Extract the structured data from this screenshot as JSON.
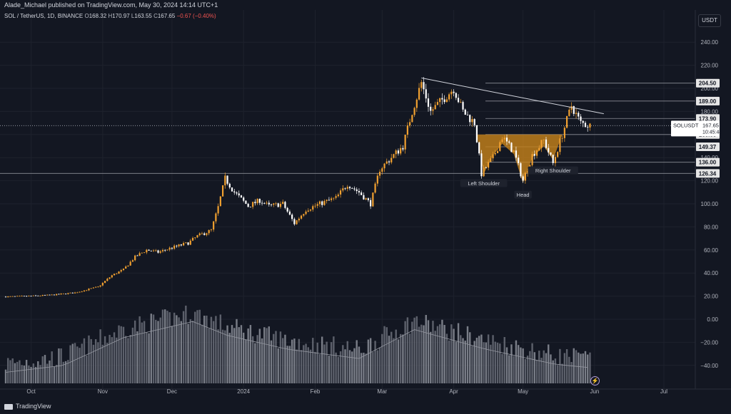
{
  "header": {
    "publish_line": "Alade_Michael published on TradingView.com, May 30, 2024 14:14 UTC+1",
    "symbol": "SOL / TetherUS, 1D, BINANCE",
    "o_label": "O",
    "o": "168.32",
    "h_label": "H",
    "h": "170.97",
    "l_label": "L",
    "l": "163.55",
    "c_label": "C",
    "c": "167.65",
    "change": "−0.67 (−0.40%)",
    "currency": "USDT"
  },
  "footer": {
    "brand": "TradingView"
  },
  "colors": {
    "background": "#131722",
    "up": "#f0a030",
    "down": "#ffffff",
    "pattern": "#c8831a",
    "volume": "#8c8f99",
    "grid": "#1e222d"
  },
  "chart_data": {
    "type": "candlestick",
    "title": "",
    "price_axis": {
      "ticks": [
        240,
        220,
        200,
        180,
        160,
        140,
        120,
        100,
        80,
        60,
        40,
        20,
        0,
        -20,
        -40
      ],
      "tick_labels": [
        "240.00",
        "220.00",
        "200.00",
        "180.00",
        "160.00",
        "140.00",
        "120.00",
        "100.00",
        "80.00",
        "60.00",
        "40.00",
        "20.00",
        "0.00",
        "−20.00",
        "−40.00"
      ]
    },
    "time_axis": {
      "labels": [
        "Oct",
        "Nov",
        "Dec",
        "2024",
        "Feb",
        "Mar",
        "Apr",
        "May",
        "Jun",
        "Jul"
      ]
    },
    "price_path": [
      [
        "2023-09-20",
        19.5
      ],
      [
        "2023-09-30",
        20
      ],
      [
        "2023-10-10",
        21
      ],
      [
        "2023-10-20",
        23
      ],
      [
        "2023-10-30",
        28
      ],
      [
        "2023-11-05",
        38
      ],
      [
        "2023-11-10",
        43
      ],
      [
        "2023-11-15",
        54
      ],
      [
        "2023-11-20",
        60
      ],
      [
        "2023-11-25",
        58
      ],
      [
        "2023-12-01",
        62
      ],
      [
        "2023-12-08",
        66
      ],
      [
        "2023-12-12",
        72
      ],
      [
        "2023-12-18",
        77
      ],
      [
        "2023-12-21",
        97
      ],
      [
        "2023-12-24",
        122
      ],
      [
        "2023-12-28",
        110
      ],
      [
        "2024-01-03",
        98
      ],
      [
        "2024-01-08",
        103
      ],
      [
        "2024-01-12",
        98
      ],
      [
        "2024-01-18",
        100
      ],
      [
        "2024-01-23",
        83
      ],
      [
        "2024-01-28",
        95
      ],
      [
        "2024-02-03",
        100
      ],
      [
        "2024-02-10",
        105
      ],
      [
        "2024-02-15",
        117
      ],
      [
        "2024-02-20",
        110
      ],
      [
        "2024-02-25",
        100
      ],
      [
        "2024-02-29",
        130
      ],
      [
        "2024-03-05",
        140
      ],
      [
        "2024-03-10",
        150
      ],
      [
        "2024-03-14",
        180
      ],
      [
        "2024-03-18",
        205
      ],
      [
        "2024-03-22",
        180
      ],
      [
        "2024-03-28",
        192
      ],
      [
        "2024-04-01",
        200
      ],
      [
        "2024-04-05",
        180
      ],
      [
        "2024-04-10",
        170
      ],
      [
        "2024-04-13",
        126
      ],
      [
        "2024-04-18",
        140
      ],
      [
        "2024-04-22",
        158
      ],
      [
        "2024-04-27",
        145
      ],
      [
        "2024-05-01",
        120
      ],
      [
        "2024-05-05",
        142
      ],
      [
        "2024-05-10",
        155
      ],
      [
        "2024-05-14",
        135
      ],
      [
        "2024-05-18",
        160
      ],
      [
        "2024-05-22",
        185
      ],
      [
        "2024-05-26",
        170
      ],
      [
        "2024-05-30",
        167.65
      ]
    ],
    "volume_profile": [
      [
        "2023-09-20",
        -42
      ],
      [
        "2023-10-15",
        -36
      ],
      [
        "2023-11-10",
        -12
      ],
      [
        "2023-12-10",
        2
      ],
      [
        "2023-12-25",
        -10
      ],
      [
        "2024-01-20",
        -22
      ],
      [
        "2024-02-20",
        -30
      ],
      [
        "2024-03-15",
        -5
      ],
      [
        "2024-04-15",
        -22
      ],
      [
        "2024-05-15",
        -35
      ],
      [
        "2024-05-30",
        -38
      ]
    ],
    "current_price": {
      "symbol": "SOLUSDT",
      "price": "167.65",
      "countdown": "10:45:48"
    },
    "levels": [
      {
        "label": "204.50",
        "value": 204.5
      },
      {
        "label": "189.00",
        "value": 189
      },
      {
        "label": "173.90",
        "value": 173.9
      },
      {
        "label": "160.00",
        "value": 160
      },
      {
        "label": "149.37",
        "value": 149.37
      },
      {
        "label": "136.00",
        "value": 136
      },
      {
        "label": "126.34",
        "value": 126.34
      }
    ],
    "trendline": {
      "start": [
        "2024-03-18",
        209
      ],
      "end": [
        "2024-06-05",
        178
      ]
    },
    "pattern_labels": [
      {
        "text": "Left Shoulder",
        "date": "2024-04-14",
        "value": 117
      },
      {
        "text": "Head",
        "date": "2024-05-01",
        "value": 107
      },
      {
        "text": "Right Shoulder",
        "date": "2024-05-14",
        "value": 128
      }
    ]
  }
}
